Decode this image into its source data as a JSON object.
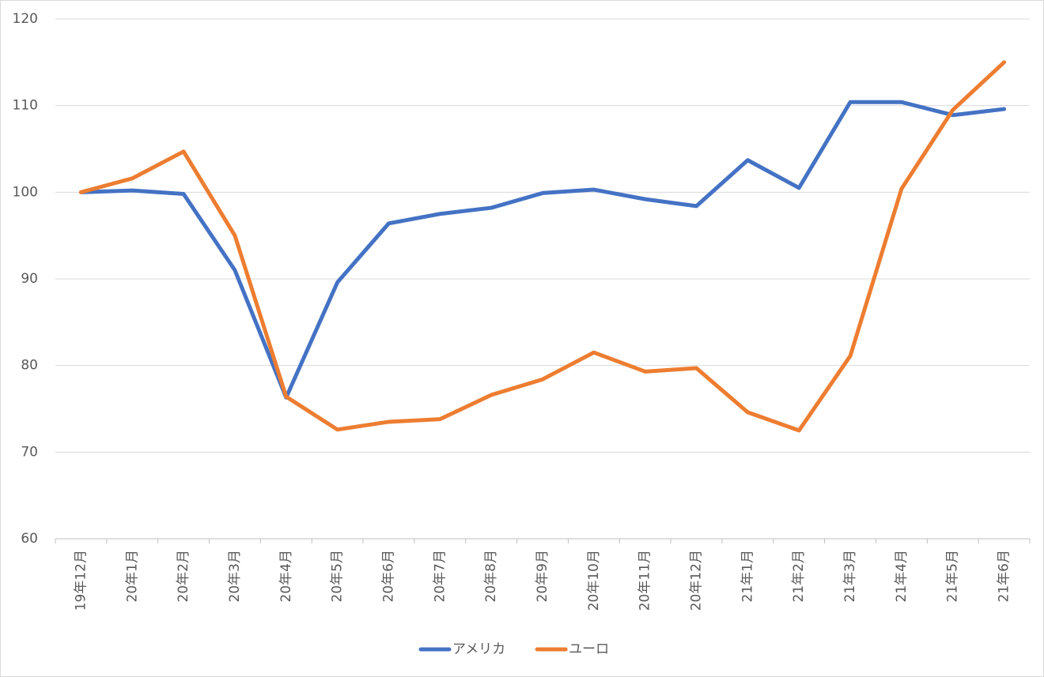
{
  "chart_data": {
    "type": "line",
    "categories": [
      "19年12月",
      "20年1月",
      "20年2月",
      "20年3月",
      "20年4月",
      "20年5月",
      "20年6月",
      "20年7月",
      "20年8月",
      "20年9月",
      "20年10月",
      "20年11月",
      "20年12月",
      "21年1月",
      "21年2月",
      "21年3月",
      "21年4月",
      "21年5月",
      "21年6月"
    ],
    "series": [
      {
        "name": "アメリカ",
        "color": "#4472c4",
        "values": [
          100,
          100.2,
          99.8,
          91.0,
          76.3,
          89.6,
          96.4,
          97.5,
          98.2,
          99.9,
          100.3,
          99.2,
          98.4,
          103.7,
          100.5,
          110.4,
          110.4,
          108.9,
          109.6
        ]
      },
      {
        "name": "ユーロ",
        "color": "#ed7d31",
        "values": [
          100,
          101.6,
          104.7,
          95.0,
          76.4,
          72.6,
          73.5,
          73.8,
          76.6,
          78.4,
          81.5,
          79.3,
          79.7,
          74.6,
          72.5,
          81.1,
          100.4,
          109.5,
          115.0
        ]
      }
    ],
    "ylim": [
      60,
      120
    ],
    "yticks": [
      60,
      70,
      80,
      90,
      100,
      110,
      120
    ],
    "grid": true,
    "legend": "bottom"
  }
}
